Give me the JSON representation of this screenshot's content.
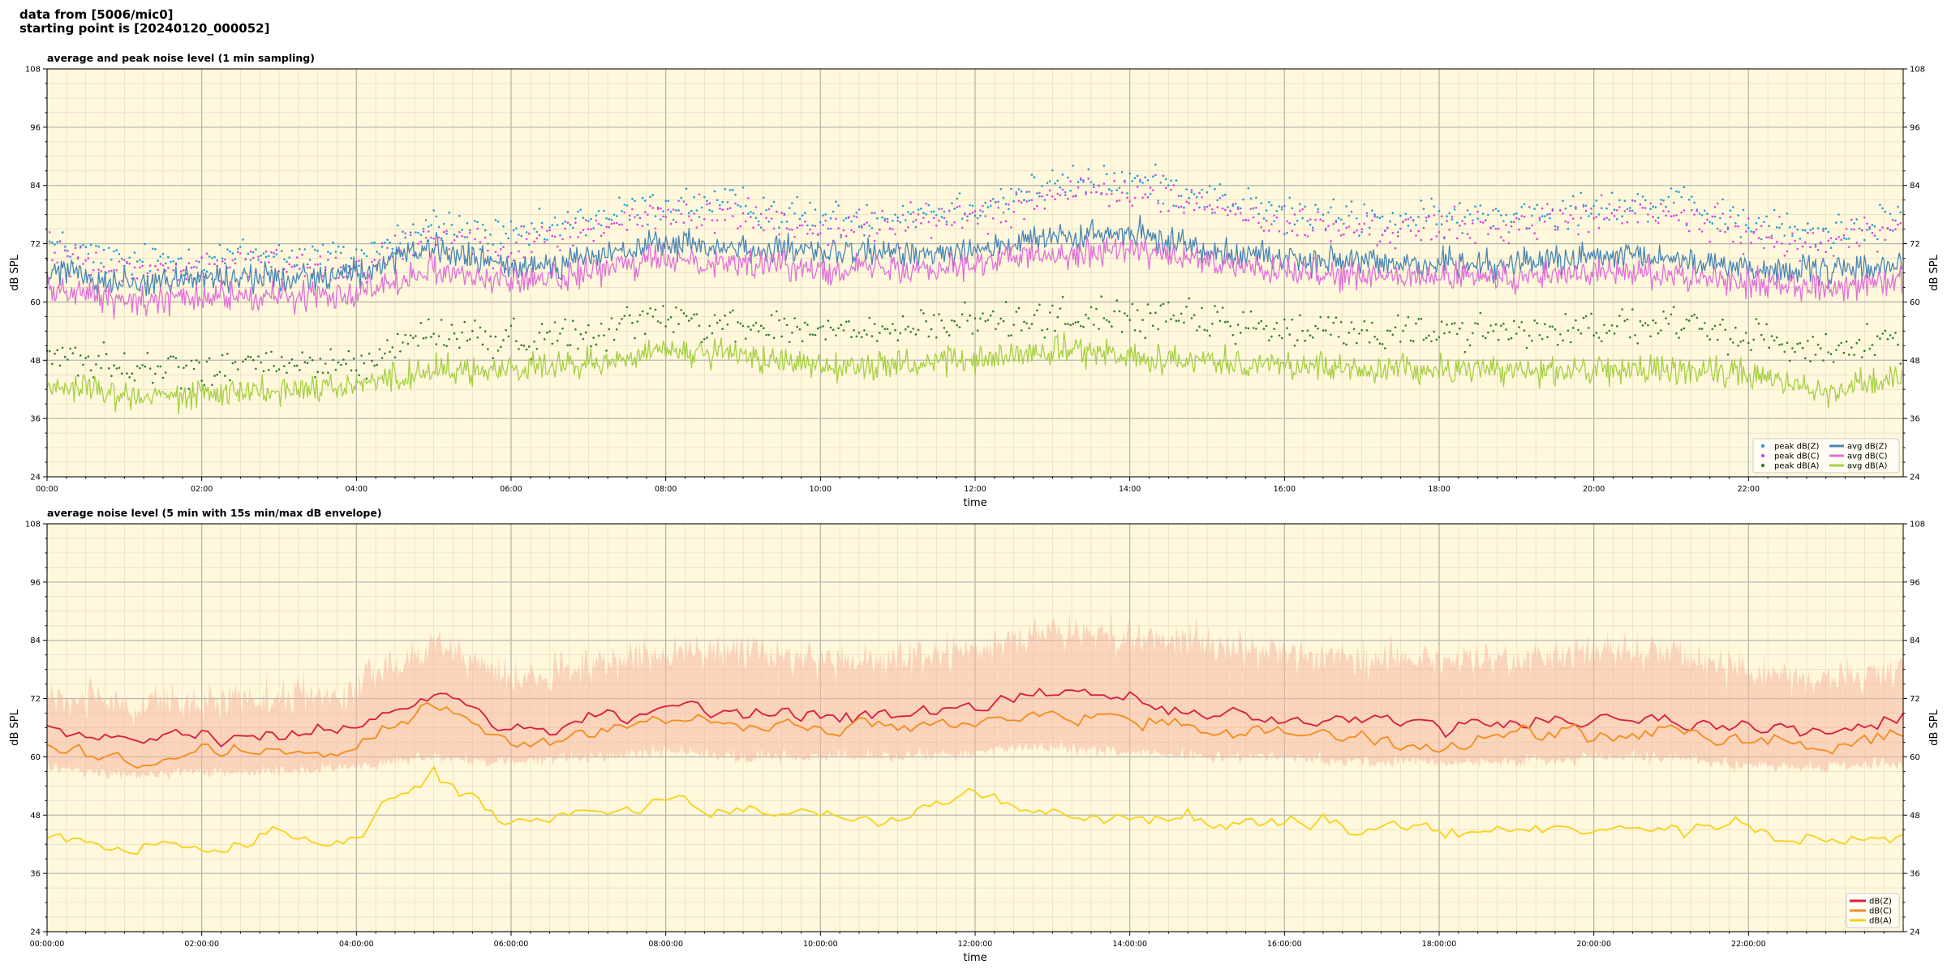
{
  "header": {
    "line1": "data from [5006/mic0]",
    "line2": "starting point is [20240120_000052]"
  },
  "chart_data": [
    {
      "type": "line",
      "title": "average and peak noise level (1 min sampling)",
      "xlabel": "time",
      "ylabel": "dB SPL",
      "ylim": [
        24,
        108
      ],
      "xlim_hours": [
        0,
        24
      ],
      "yticks": [
        24,
        36,
        48,
        60,
        72,
        84,
        96,
        108
      ],
      "xtick_labels": [
        "00:00",
        "02:00",
        "04:00",
        "06:00",
        "08:00",
        "10:00",
        "12:00",
        "14:00",
        "16:00",
        "18:00",
        "20:00",
        "22:00"
      ],
      "grid": true,
      "legend_position": "lower-right",
      "legend_columns": 2,
      "series": [
        {
          "name": "peak dB(Z)",
          "kind": "scatter",
          "color": "#1f9fd8",
          "x": [
            0,
            1,
            2,
            3,
            4,
            5,
            6,
            7,
            8,
            9,
            10,
            11,
            12,
            13,
            14,
            15,
            16,
            17,
            18,
            19,
            20,
            21,
            22,
            23,
            24
          ],
          "values": [
            72,
            68,
            69,
            70,
            69,
            76,
            73,
            77,
            80,
            80,
            77,
            78,
            80,
            84,
            85,
            82,
            78,
            77,
            77,
            78,
            80,
            80,
            76,
            74,
            78
          ]
        },
        {
          "name": "peak dB(C)",
          "kind": "scatter",
          "color": "#e040e0",
          "x": [
            0,
            1,
            2,
            3,
            4,
            5,
            6,
            7,
            8,
            9,
            10,
            11,
            12,
            13,
            14,
            15,
            16,
            17,
            18,
            19,
            20,
            21,
            22,
            23,
            24
          ],
          "values": [
            70,
            66,
            67,
            68,
            67,
            74,
            71,
            75,
            78,
            78,
            75,
            76,
            78,
            82,
            83,
            80,
            76,
            75,
            75,
            76,
            78,
            78,
            74,
            72,
            76
          ]
        },
        {
          "name": "peak dB(A)",
          "kind": "scatter",
          "color": "#2e7d32",
          "x": [
            0,
            1,
            2,
            3,
            4,
            5,
            6,
            7,
            8,
            9,
            10,
            11,
            12,
            13,
            14,
            15,
            16,
            17,
            18,
            19,
            20,
            21,
            22,
            23,
            24
          ],
          "values": [
            50,
            46,
            46,
            47,
            47,
            54,
            52,
            54,
            57,
            55,
            54,
            54,
            56,
            57,
            57,
            56,
            54,
            54,
            54,
            54,
            55,
            55,
            53,
            50,
            52
          ]
        },
        {
          "name": "avg dB(Z)",
          "kind": "line",
          "color": "#4a86b5",
          "x": [
            0,
            1,
            2,
            3,
            4,
            5,
            6,
            7,
            8,
            9,
            10,
            11,
            12,
            13,
            14,
            15,
            16,
            17,
            18,
            19,
            20,
            21,
            22,
            23,
            24
          ],
          "values": [
            67,
            64,
            65,
            65,
            66,
            71,
            67,
            69,
            72,
            71,
            70,
            70,
            71,
            73,
            74,
            71,
            69,
            68,
            68,
            68,
            69,
            69,
            67,
            66,
            68
          ]
        },
        {
          "name": "avg dB(C)",
          "kind": "line",
          "color": "#e070d8",
          "x": [
            0,
            1,
            2,
            3,
            4,
            5,
            6,
            7,
            8,
            9,
            10,
            11,
            12,
            13,
            14,
            15,
            16,
            17,
            18,
            19,
            20,
            21,
            22,
            23,
            24
          ],
          "values": [
            63,
            60,
            61,
            61,
            62,
            67,
            64,
            66,
            69,
            68,
            67,
            67,
            68,
            70,
            71,
            68,
            66,
            65,
            65,
            65,
            66,
            66,
            64,
            63,
            65
          ]
        },
        {
          "name": "avg dB(A)",
          "kind": "line",
          "color": "#a6cf44",
          "x": [
            0,
            1,
            2,
            3,
            4,
            5,
            6,
            7,
            8,
            9,
            10,
            11,
            12,
            13,
            14,
            15,
            16,
            17,
            18,
            19,
            20,
            21,
            22,
            23,
            24
          ],
          "values": [
            43,
            41,
            41,
            42,
            43,
            46,
            46,
            47,
            50,
            49,
            47,
            47,
            48,
            50,
            49,
            48,
            47,
            46,
            46,
            46,
            46,
            46,
            45,
            42,
            44
          ]
        }
      ]
    },
    {
      "type": "area",
      "title": "average noise level (5 min with 15s min/max dB envelope)",
      "xlabel": "time",
      "ylabel": "dB SPL",
      "ylim": [
        24,
        108
      ],
      "xlim_hours": [
        0,
        24
      ],
      "yticks": [
        24,
        36,
        48,
        60,
        72,
        84,
        96,
        108
      ],
      "xtick_labels": [
        "00:00:00",
        "02:00:00",
        "04:00:00",
        "06:00:00",
        "08:00:00",
        "10:00:00",
        "12:00:00",
        "14:00:00",
        "16:00:00",
        "18:00:00",
        "20:00:00",
        "22:00:00"
      ],
      "grid": true,
      "legend_position": "lower-right",
      "envelope": {
        "color": "#f5b7a0",
        "x": [
          0,
          1,
          2,
          3,
          4,
          5,
          6,
          7,
          8,
          9,
          10,
          11,
          12,
          13,
          14,
          15,
          16,
          17,
          18,
          19,
          20,
          21,
          22,
          23,
          24
        ],
        "max": [
          74,
          70,
          71,
          72,
          74,
          84,
          76,
          79,
          82,
          82,
          80,
          80,
          82,
          86,
          85,
          84,
          81,
          80,
          80,
          80,
          82,
          82,
          78,
          76,
          78
        ],
        "min": [
          58,
          56,
          57,
          57,
          58,
          60,
          59,
          60,
          61,
          60,
          60,
          60,
          61,
          62,
          61,
          60,
          60,
          59,
          59,
          59,
          60,
          60,
          58,
          58,
          59
        ]
      },
      "series": [
        {
          "name": "dB(Z)",
          "color": "#d81b40",
          "x": [
            0,
            1,
            2,
            3,
            4,
            5,
            6,
            7,
            8,
            9,
            10,
            11,
            12,
            13,
            14,
            15,
            16,
            17,
            18,
            19,
            20,
            21,
            22,
            23,
            24
          ],
          "values": [
            67,
            63,
            64,
            65,
            66,
            73,
            65,
            67,
            71,
            70,
            69,
            69,
            70,
            73,
            72,
            69,
            68,
            67,
            66,
            67,
            68,
            68,
            66,
            65,
            68
          ]
        },
        {
          "name": "dB(C)",
          "color": "#f28c1e",
          "x": [
            0,
            1,
            2,
            3,
            4,
            5,
            6,
            7,
            8,
            9,
            10,
            11,
            12,
            13,
            14,
            15,
            16,
            17,
            18,
            19,
            20,
            21,
            22,
            23,
            24
          ],
          "values": [
            62,
            59,
            61,
            61,
            62,
            71,
            63,
            64,
            68,
            67,
            66,
            66,
            67,
            69,
            68,
            66,
            65,
            64,
            63,
            64,
            65,
            65,
            63,
            62,
            64
          ]
        },
        {
          "name": "dB(A)",
          "color": "#f7d11a",
          "x": [
            0,
            1,
            2,
            3,
            4,
            5,
            6,
            7,
            8,
            9,
            10,
            11,
            12,
            13,
            14,
            15,
            16,
            17,
            18,
            19,
            20,
            21,
            22,
            23,
            24
          ],
          "values": [
            44,
            41,
            42,
            43,
            44,
            56,
            46,
            48,
            50,
            49,
            48,
            47,
            53,
            48,
            48,
            47,
            46,
            46,
            45,
            45,
            46,
            46,
            45,
            42,
            44
          ]
        }
      ]
    }
  ]
}
